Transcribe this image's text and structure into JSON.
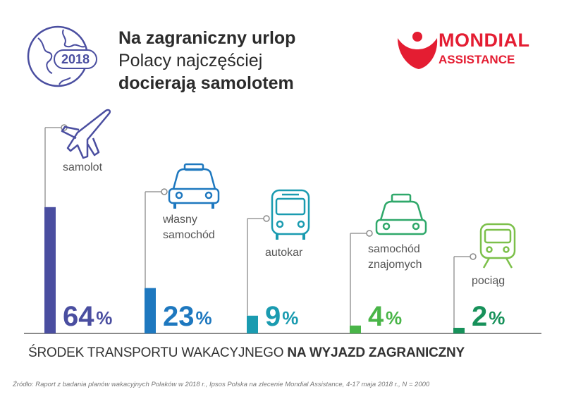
{
  "header": {
    "year": "2018",
    "title_line1": "Na zagraniczny urlop",
    "title_line2": "Polacy najczęściej",
    "title_line3": "docierają samolotem"
  },
  "logo": {
    "line1": "MONDIAL",
    "line2": "ASSISTANCE",
    "color": "#e41d32"
  },
  "chart_data": {
    "type": "bar",
    "categories": [
      "samolot",
      "własny samochód",
      "autokar",
      "samochód znajomych",
      "pociąg"
    ],
    "category_lines": [
      [
        "samolot"
      ],
      [
        "własny",
        "samochód"
      ],
      [
        "autokar"
      ],
      [
        "samochód",
        "znajomych"
      ],
      [
        "pociąg"
      ]
    ],
    "values": [
      64,
      23,
      9,
      4,
      2
    ],
    "value_unit": "%",
    "colors": [
      "#4a4ea0",
      "#1e78bf",
      "#1a9bb0",
      "#49b548",
      "#17915a"
    ],
    "icons": [
      "plane-icon",
      "car-icon",
      "bus-icon",
      "taxi-icon",
      "train-icon"
    ],
    "xlabel": "ŚRODEK TRANSPORTU WAKACYJNEGO",
    "xlabel_bold": "NA WYJAZD ZAGRANICZNY",
    "ylim": [
      0,
      100
    ],
    "grid": false,
    "title": "Na zagraniczny urlop Polacy najczęściej docierają samolotem"
  },
  "footer": {
    "label_regular": "ŚRODEK TRANSPORTU WAKACYJNEGO",
    "label_bold": "NA WYJAZD ZAGRANICZNY",
    "source": "Źródło: Raport z badania planów wakacyjnych Polaków w 2018 r., Ipsos Polska na zlecenie Mondial Assistance, 4-17 maja 2018 r., N = 2000"
  }
}
